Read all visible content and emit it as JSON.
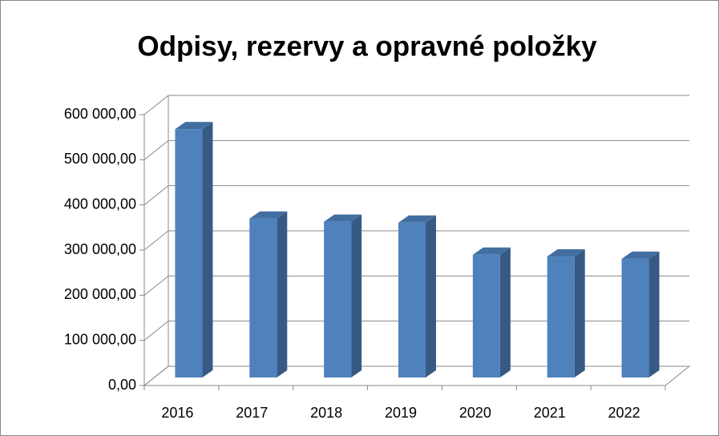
{
  "chart_data": {
    "type": "bar3d",
    "title": "Odpisy, rezervy a opravné položky",
    "categories": [
      "2016",
      "2017",
      "2018",
      "2019",
      "2020",
      "2021",
      "2022"
    ],
    "values": [
      550000,
      352000,
      345000,
      343000,
      272000,
      268000,
      263000
    ],
    "color": "#4f81bd",
    "ylim": [
      0,
      600000
    ],
    "yticks": [
      {
        "value": 0,
        "label": "0,00"
      },
      {
        "value": 100000,
        "label": "100 000,00"
      },
      {
        "value": 200000,
        "label": "200 000,00"
      },
      {
        "value": 300000,
        "label": "300 000,00"
      },
      {
        "value": 400000,
        "label": "400 000,00"
      },
      {
        "value": 500000,
        "label": "500 000,00"
      },
      {
        "value": 600000,
        "label": "600 000,00"
      }
    ],
    "grid": true
  }
}
